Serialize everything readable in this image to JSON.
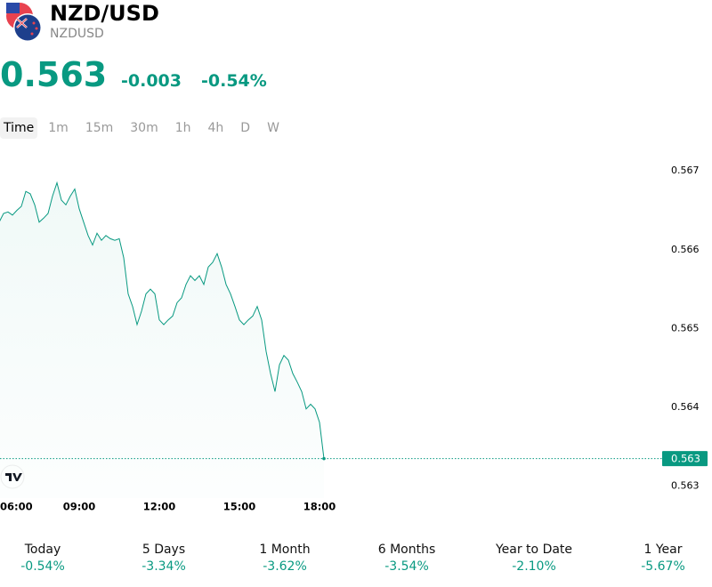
{
  "header": {
    "title": "NZD/USD",
    "symbol": "NZDUSD",
    "price": "0.563",
    "change": "-0.003",
    "change_percent": "-0.54%"
  },
  "timeframes": [
    "Time",
    "1m",
    "15m",
    "30m",
    "1h",
    "4h",
    "D",
    "W"
  ],
  "chart_data": {
    "type": "line",
    "color": "#089981",
    "x": [
      "06:00",
      "06:10",
      "06:20",
      "06:30",
      "06:40",
      "06:50",
      "07:00",
      "07:10",
      "07:20",
      "07:30",
      "07:40",
      "07:50",
      "08:00",
      "08:10",
      "08:20",
      "08:30",
      "08:40",
      "08:50",
      "09:00",
      "09:10",
      "09:20",
      "09:30",
      "09:40",
      "09:50",
      "10:00",
      "10:10",
      "10:20",
      "10:30",
      "10:40",
      "10:50",
      "11:00",
      "11:10",
      "11:20",
      "11:30",
      "11:40",
      "11:50",
      "12:00",
      "12:10",
      "12:20",
      "12:30",
      "12:40",
      "12:50",
      "13:00",
      "13:10",
      "13:20",
      "13:30",
      "13:40",
      "13:50",
      "14:00",
      "14:10",
      "14:20",
      "14:30",
      "14:40",
      "14:50",
      "15:00",
      "15:10",
      "15:20",
      "15:30",
      "15:40",
      "15:50",
      "16:00",
      "16:10",
      "16:20",
      "16:30",
      "16:40",
      "16:50",
      "17:00",
      "17:10",
      "17:20",
      "17:30",
      "17:40",
      "17:50",
      "18:00",
      "18:10"
    ],
    "values": [
      0.56635,
      0.56646,
      0.56648,
      0.56644,
      0.5665,
      0.56655,
      0.56674,
      0.56671,
      0.56657,
      0.56635,
      0.5664,
      0.56646,
      0.56668,
      0.56685,
      0.56663,
      0.56657,
      0.56668,
      0.56677,
      0.56652,
      0.56635,
      0.56618,
      0.56606,
      0.56621,
      0.56612,
      0.56618,
      0.56614,
      0.56612,
      0.56614,
      0.5659,
      0.56544,
      0.56528,
      0.56505,
      0.56522,
      0.56544,
      0.5655,
      0.56544,
      0.56511,
      0.56505,
      0.56511,
      0.56516,
      0.56533,
      0.56539,
      0.56556,
      0.56567,
      0.56561,
      0.56567,
      0.56556,
      0.56578,
      0.56584,
      0.56595,
      0.56578,
      0.56556,
      0.56544,
      0.56528,
      0.56511,
      0.56505,
      0.56511,
      0.56516,
      0.56528,
      0.56511,
      0.56471,
      0.56443,
      0.5642,
      0.56454,
      0.56466,
      0.5646,
      0.56443,
      0.56432,
      0.5642,
      0.56398,
      0.56404,
      0.56398,
      0.56381,
      0.56335
    ],
    "xlim": [
      "06:00",
      "18:00"
    ],
    "xticks": [
      "06:00",
      "09:00",
      "12:00",
      "15:00",
      "18:00"
    ],
    "ylim": [
      0.56285,
      0.56725
    ],
    "yticks": [
      0.567,
      0.566,
      0.565,
      0.564,
      0.563
    ],
    "price_line": {
      "value": 0.56335,
      "label": "0.563"
    }
  },
  "performance": [
    {
      "period": "Today",
      "change": "-0.54%"
    },
    {
      "period": "5 Days",
      "change": "-3.34%"
    },
    {
      "period": "1 Month",
      "change": "-3.62%"
    },
    {
      "period": "6 Months",
      "change": "-3.54%"
    },
    {
      "period": "Year to Date",
      "change": "-2.10%"
    },
    {
      "period": "1 Year",
      "change": "-5.67%"
    }
  ]
}
